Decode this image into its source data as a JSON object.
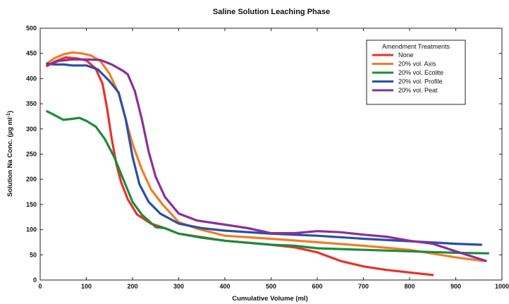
{
  "chart_data": {
    "type": "line",
    "title": "Saline Solution Leaching Phase",
    "xlabel": "Cumulative Volume (ml)",
    "ylabel_main": "Solution Na Conc. (µg ml",
    "ylabel_sup": "-1",
    "ylabel_close": ")",
    "xlim": [
      0,
      1000
    ],
    "ylim": [
      0,
      500
    ],
    "xticks": [
      0,
      100,
      200,
      300,
      400,
      500,
      600,
      700,
      800,
      900,
      1000
    ],
    "yticks": [
      0,
      50,
      100,
      150,
      200,
      250,
      300,
      350,
      400,
      450,
      500
    ],
    "grid": false,
    "legend": {
      "title": "Amendment Treatments",
      "placement": "top-right"
    },
    "series": [
      {
        "name": "None",
        "color": "#e8322a",
        "points": [
          [
            15,
            425
          ],
          [
            30,
            433
          ],
          [
            55,
            442
          ],
          [
            80,
            440
          ],
          [
            100,
            436
          ],
          [
            120,
            420
          ],
          [
            135,
            390
          ],
          [
            145,
            340
          ],
          [
            155,
            280
          ],
          [
            165,
            230
          ],
          [
            175,
            195
          ],
          [
            190,
            160
          ],
          [
            210,
            130
          ],
          [
            240,
            112
          ],
          [
            270,
            103
          ],
          [
            300,
            92
          ],
          [
            350,
            85
          ],
          [
            400,
            78
          ],
          [
            450,
            74
          ],
          [
            500,
            70
          ],
          [
            550,
            65
          ],
          [
            600,
            55
          ],
          [
            650,
            38
          ],
          [
            700,
            27
          ],
          [
            750,
            20
          ],
          [
            800,
            15
          ],
          [
            850,
            10
          ]
        ]
      },
      {
        "name": "20% vol. Axis",
        "color": "#f07e24",
        "points": [
          [
            15,
            430
          ],
          [
            30,
            440
          ],
          [
            50,
            448
          ],
          [
            70,
            452
          ],
          [
            90,
            450
          ],
          [
            110,
            446
          ],
          [
            130,
            435
          ],
          [
            150,
            410
          ],
          [
            170,
            370
          ],
          [
            185,
            320
          ],
          [
            200,
            270
          ],
          [
            220,
            220
          ],
          [
            240,
            180
          ],
          [
            265,
            150
          ],
          [
            300,
            115
          ],
          [
            340,
            102
          ],
          [
            400,
            88
          ],
          [
            500,
            82
          ],
          [
            600,
            75
          ],
          [
            700,
            68
          ],
          [
            800,
            60
          ],
          [
            900,
            45
          ],
          [
            960,
            38
          ]
        ]
      },
      {
        "name": "20% vol. Ecolite",
        "color": "#1b8c3a",
        "points": [
          [
            15,
            335
          ],
          [
            30,
            328
          ],
          [
            50,
            318
          ],
          [
            70,
            320
          ],
          [
            85,
            322
          ],
          [
            100,
            316
          ],
          [
            120,
            305
          ],
          [
            140,
            280
          ],
          [
            160,
            245
          ],
          [
            180,
            200
          ],
          [
            200,
            155
          ],
          [
            220,
            130
          ],
          [
            250,
            105
          ],
          [
            270,
            103
          ],
          [
            300,
            92
          ],
          [
            350,
            84
          ],
          [
            400,
            78
          ],
          [
            450,
            74
          ],
          [
            500,
            70
          ],
          [
            550,
            68
          ],
          [
            600,
            63
          ],
          [
            700,
            60
          ],
          [
            800,
            57
          ],
          [
            900,
            54
          ],
          [
            970,
            53
          ]
        ]
      },
      {
        "name": "20% vol. Profile",
        "color": "#2b4fa8",
        "points": [
          [
            15,
            430
          ],
          [
            30,
            428
          ],
          [
            50,
            428
          ],
          [
            70,
            426
          ],
          [
            100,
            426
          ],
          [
            125,
            418
          ],
          [
            150,
            395
          ],
          [
            170,
            372
          ],
          [
            185,
            320
          ],
          [
            200,
            245
          ],
          [
            215,
            190
          ],
          [
            235,
            155
          ],
          [
            260,
            132
          ],
          [
            300,
            112
          ],
          [
            350,
            103
          ],
          [
            400,
            98
          ],
          [
            500,
            92
          ],
          [
            600,
            88
          ],
          [
            700,
            82
          ],
          [
            800,
            77
          ],
          [
            900,
            72
          ],
          [
            955,
            70
          ]
        ]
      },
      {
        "name": "20% vol. Peat",
        "color": "#8a2f9a",
        "points": [
          [
            15,
            427
          ],
          [
            40,
            435
          ],
          [
            70,
            438
          ],
          [
            100,
            438
          ],
          [
            130,
            437
          ],
          [
            155,
            428
          ],
          [
            180,
            415
          ],
          [
            190,
            408
          ],
          [
            205,
            375
          ],
          [
            220,
            320
          ],
          [
            235,
            255
          ],
          [
            250,
            205
          ],
          [
            270,
            165
          ],
          [
            300,
            132
          ],
          [
            340,
            118
          ],
          [
            400,
            110
          ],
          [
            450,
            103
          ],
          [
            500,
            93
          ],
          [
            550,
            93
          ],
          [
            600,
            97
          ],
          [
            650,
            95
          ],
          [
            700,
            90
          ],
          [
            750,
            86
          ],
          [
            800,
            78
          ],
          [
            850,
            72
          ],
          [
            900,
            57
          ],
          [
            965,
            38
          ]
        ]
      }
    ]
  }
}
